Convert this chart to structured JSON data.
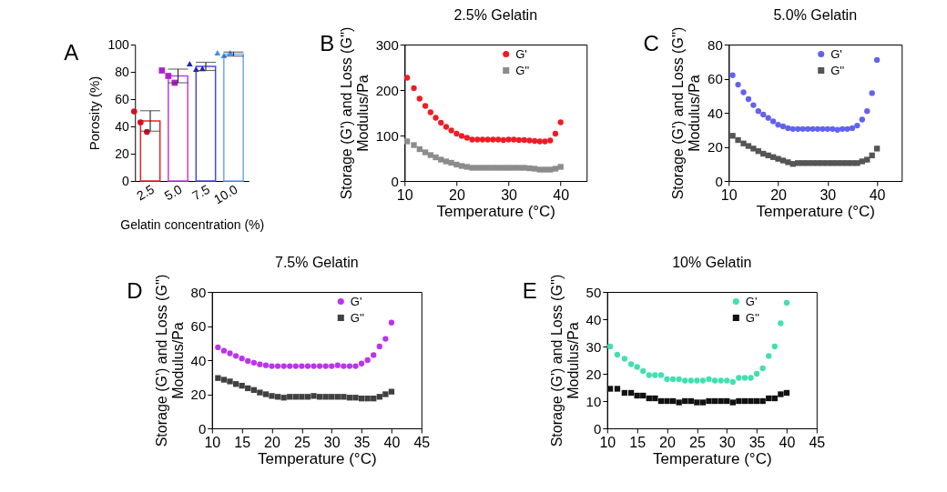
{
  "chart_data": [
    {
      "type": "bar",
      "xlabel": "Gelatin concentration (%)",
      "ylabel": "Porosity (%)",
      "annotations": [
        "A"
      ],
      "categories": [
        "2.5",
        "5.0",
        "7.5",
        "10.0"
      ],
      "values": [
        44,
        77,
        84,
        93
      ],
      "colors": [
        "#e8202a",
        "#c040e0",
        "#4848e0",
        "#70a8f0"
      ],
      "errors": [
        7.5,
        5,
        3,
        1.5
      ],
      "ylim": [
        0,
        100
      ],
      "yticks": [
        0,
        20,
        40,
        60,
        80,
        100
      ],
      "series": [
        {
          "type": "scatter",
          "marker": "circle",
          "color": "#d01020",
          "x": [
            "2.5",
            "2.5",
            "2.5"
          ],
          "values": [
            51,
            43,
            36
          ]
        },
        {
          "type": "scatter",
          "marker": "square",
          "color": "#b020d0",
          "x": [
            "5.0",
            "5.0",
            "5.0"
          ],
          "values": [
            81,
            77,
            72
          ]
        },
        {
          "type": "scatter",
          "marker": "triangle",
          "color": "#2020d0",
          "x": [
            "7.5",
            "7.5",
            "7.5"
          ],
          "values": [
            86,
            82,
            82.5
          ]
        },
        {
          "type": "scatter",
          "marker": "triangle",
          "color": "#4090f0",
          "x": [
            "10.0",
            "10.0",
            "10.0"
          ],
          "values": [
            94,
            92,
            94
          ]
        }
      ]
    },
    {
      "type": "scatter",
      "title": "2.5% Gelatin",
      "xlabel": "Temperature (°C)",
      "ylabel": "Storage (G') and Loss (G'')\nModulus/Pa",
      "annotations": [
        "B"
      ],
      "legend": "top right",
      "xlim": [
        10,
        45
      ],
      "xticks": [
        10,
        20,
        30,
        40
      ],
      "ylim": [
        0,
        300
      ],
      "yticks": [
        0,
        100,
        200,
        300
      ],
      "x": [
        10.5,
        11.8,
        12.9,
        14,
        15,
        16,
        17,
        18,
        19,
        20,
        21,
        22,
        23,
        24,
        25,
        26,
        27,
        28,
        29,
        30,
        31,
        32,
        33,
        34,
        35,
        36,
        37,
        38,
        39,
        40
      ],
      "series": [
        {
          "name": "G'",
          "marker": "circle",
          "color": "#ee1c25",
          "values": [
            227,
            204,
            181,
            165,
            151,
            139,
            128,
            119,
            111,
            104,
            99,
            95,
            91,
            91,
            91,
            91,
            91,
            91,
            90,
            91,
            91,
            90,
            90,
            89,
            88,
            87,
            87,
            89,
            104,
            129
          ]
        },
        {
          "name": "G''",
          "marker": "square",
          "color": "#8c8c8c",
          "values": [
            87,
            79,
            70,
            63,
            57,
            52,
            47,
            43,
            40,
            36,
            33,
            31,
            29,
            29,
            29,
            29,
            29,
            29,
            29,
            29,
            29,
            29,
            29,
            28,
            27,
            25,
            25,
            25,
            27,
            31
          ]
        }
      ]
    },
    {
      "type": "scatter",
      "title": "5.0% Gelatin",
      "xlabel": "Temperature (°C)",
      "ylabel": "Storage (G') and Loss (G'')\nModulus/Pa",
      "annotations": [
        "C"
      ],
      "legend": "top right",
      "xlim": [
        10,
        45
      ],
      "xticks": [
        10,
        20,
        30,
        40
      ],
      "ylim": [
        0,
        80
      ],
      "yticks": [
        0,
        20,
        40,
        60,
        80
      ],
      "x": [
        10.8,
        11.9,
        13,
        14,
        15,
        16,
        17,
        18,
        19,
        20,
        21,
        22,
        23,
        24,
        25,
        26,
        27,
        28,
        29,
        30,
        31,
        32,
        33,
        34,
        35,
        36,
        37,
        38,
        39,
        40
      ],
      "series": [
        {
          "name": "G'",
          "marker": "circle",
          "color": "#6262ee",
          "values": [
            62,
            56.5,
            52,
            48,
            44.5,
            41,
            39,
            37,
            35,
            33,
            32,
            31,
            30.5,
            30.5,
            30.5,
            30.5,
            30.5,
            30.5,
            30.5,
            30.5,
            30.5,
            30,
            30.5,
            30.5,
            31,
            32.5,
            36,
            41,
            51.5,
            71
          ]
        },
        {
          "name": "G''",
          "marker": "square",
          "color": "#555555",
          "values": [
            26.5,
            24,
            22,
            20.5,
            19,
            17.5,
            16,
            15,
            14,
            13,
            12,
            11,
            10,
            10.5,
            10.5,
            10.5,
            10.5,
            10.5,
            10.5,
            10.5,
            10.5,
            10.5,
            10.5,
            10.5,
            10.5,
            10.5,
            11.5,
            12.5,
            15,
            19
          ]
        }
      ]
    },
    {
      "type": "scatter",
      "title": "7.5% Gelatin",
      "xlabel": "Temperature (°C)",
      "ylabel": "Storage (G') and Loss (G'')\nModulus/Pa",
      "annotations": [
        "D"
      ],
      "legend": "top right",
      "xlim": [
        10,
        45
      ],
      "xticks": [
        10,
        15,
        20,
        25,
        30,
        35,
        40,
        45
      ],
      "ylim": [
        0,
        80
      ],
      "yticks": [
        0,
        20,
        40,
        60,
        80
      ],
      "x": [
        11,
        12,
        13,
        14,
        15,
        16,
        17,
        18,
        19,
        20,
        21,
        22,
        23,
        24,
        25,
        26,
        27,
        28,
        29,
        30,
        31,
        32,
        33,
        34,
        35,
        36,
        37,
        38,
        39,
        40
      ],
      "series": [
        {
          "name": "G'",
          "marker": "circle",
          "color": "#bb33ee",
          "values": [
            47.5,
            45.5,
            44,
            42.5,
            41,
            39.5,
            38.5,
            37.5,
            37,
            36.5,
            36.5,
            36.5,
            36.5,
            36.5,
            36.5,
            36.5,
            36.5,
            36.5,
            36.5,
            36.5,
            37,
            36.5,
            36.5,
            36.5,
            38,
            40,
            43,
            48,
            52.5,
            62
          ]
        },
        {
          "name": "G''",
          "marker": "square",
          "color": "#404040",
          "values": [
            29.5,
            28.5,
            27.5,
            26,
            25,
            23.5,
            22.5,
            21,
            20,
            19,
            18.5,
            18,
            18.5,
            18.5,
            18.5,
            18.5,
            19,
            18.5,
            18.5,
            18.5,
            18.5,
            18.5,
            18,
            18,
            17.5,
            17.5,
            17.5,
            18.5,
            20,
            21.5
          ]
        }
      ]
    },
    {
      "type": "scatter",
      "title": "10% Gelatin",
      "xlabel": "Temperature (°C)",
      "ylabel": "Storage (G') and Loss (G'')\nModulus/Pa",
      "annotations": [
        "E"
      ],
      "legend": "top right",
      "xlim": [
        10,
        45
      ],
      "xticks": [
        10,
        15,
        20,
        25,
        30,
        35,
        40,
        45
      ],
      "ylim": [
        0,
        50
      ],
      "yticks": [
        0,
        10,
        20,
        30,
        40,
        50
      ],
      "x": [
        10.5,
        11.7,
        12.9,
        14,
        15,
        16,
        17,
        18,
        19,
        20,
        21,
        22,
        23,
        24,
        25,
        26,
        27,
        28,
        29,
        30,
        31,
        32,
        33,
        34,
        35,
        36,
        37,
        38,
        39,
        40
      ],
      "series": [
        {
          "name": "G'",
          "marker": "circle",
          "color": "#40e0b0",
          "values": [
            30,
            27,
            25.5,
            23.5,
            22.5,
            21,
            19.5,
            19.5,
            19.5,
            18,
            18,
            18,
            17.5,
            17.5,
            17.5,
            17.5,
            18,
            17.5,
            17.5,
            17.5,
            17,
            18.5,
            18.5,
            18.5,
            20,
            22,
            26.5,
            30,
            38.5,
            46
          ]
        },
        {
          "name": "G''",
          "marker": "square",
          "color": "#111111",
          "values": [
            14.5,
            14.5,
            13,
            13,
            12,
            12,
            11,
            11,
            10,
            10,
            10,
            9.5,
            10,
            10,
            9.5,
            9.5,
            10,
            10,
            10,
            10,
            9.5,
            10,
            10,
            10,
            10,
            10,
            11,
            11,
            12.5,
            13
          ]
        }
      ]
    }
  ]
}
